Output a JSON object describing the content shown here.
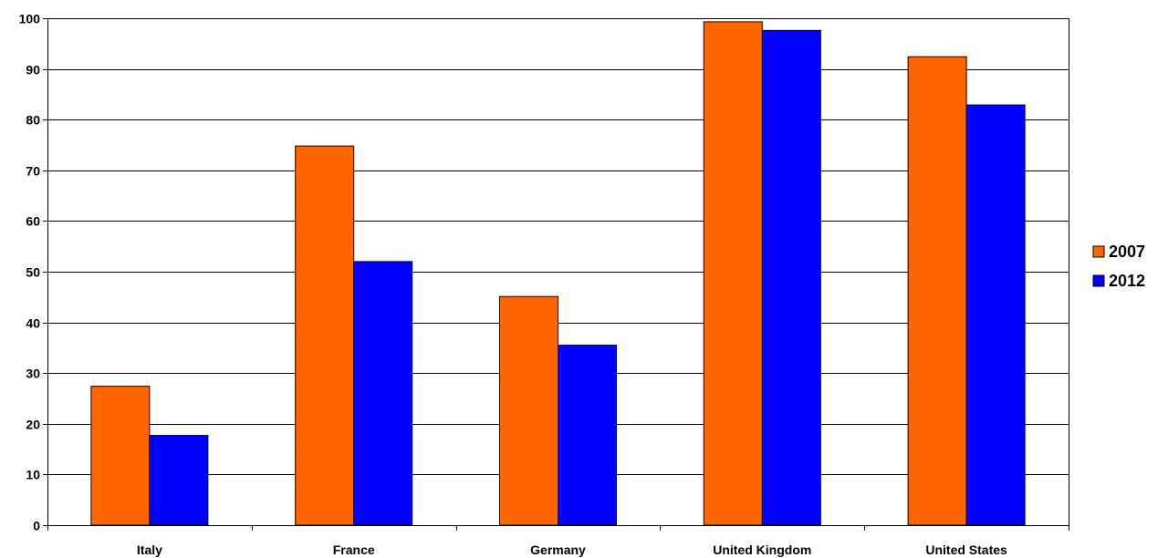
{
  "chart_data": {
    "type": "bar",
    "title": "",
    "xlabel": "",
    "ylabel": "",
    "categories": [
      "Italy",
      "France",
      "Germany",
      "United Kingdom",
      "United States"
    ],
    "series": [
      {
        "name": "2007",
        "color": "#ff6600",
        "values": [
          27.4,
          74.8,
          45.1,
          99.3,
          92.4
        ]
      },
      {
        "name": "2012",
        "color": "#0000ff",
        "values": [
          17.7,
          52.0,
          35.5,
          97.6,
          82.9
        ]
      }
    ],
    "ylim": [
      0,
      100
    ],
    "yticks": [
      0,
      10,
      20,
      30,
      40,
      50,
      60,
      70,
      80,
      90,
      100
    ],
    "grid": true,
    "legend_position": "right"
  }
}
